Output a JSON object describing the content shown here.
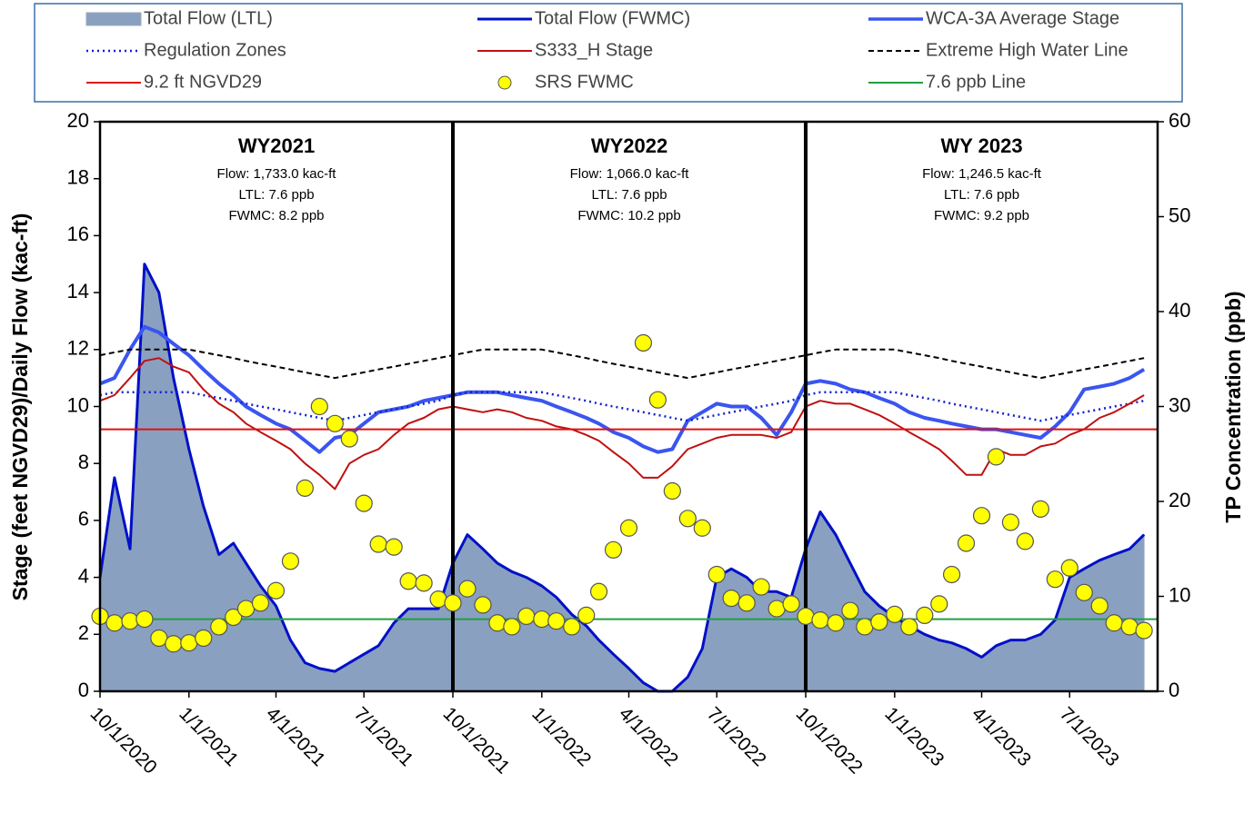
{
  "chart_data": {
    "type": "combo",
    "ylabel": "Stage (feet NGVD29)/Daily Flow (kac-ft)",
    "y2label": "TP Concentration (ppb)",
    "xlim": [
      "2020-10-01",
      "2023-09-30"
    ],
    "xticks": [
      {
        "value": "2020-10-01",
        "label": "10/1/2020"
      },
      {
        "value": "2021-01-01",
        "label": "1/1/2021"
      },
      {
        "value": "2021-04-01",
        "label": "4/1/2021"
      },
      {
        "value": "2021-07-01",
        "label": "7/1/2021"
      },
      {
        "value": "2021-10-01",
        "label": "10/1/2021"
      },
      {
        "value": "2022-01-01",
        "label": "1/1/2022"
      },
      {
        "value": "2022-04-01",
        "label": "4/1/2022"
      },
      {
        "value": "2022-07-01",
        "label": "7/1/2022"
      },
      {
        "value": "2022-10-01",
        "label": "10/1/2022"
      },
      {
        "value": "2023-01-01",
        "label": "1/1/2023"
      },
      {
        "value": "2023-04-01",
        "label": "4/1/2023"
      },
      {
        "value": "2023-07-01",
        "label": "7/1/2023"
      }
    ],
    "ylim": [
      0,
      20
    ],
    "yticks": [
      0,
      2,
      4,
      6,
      8,
      10,
      12,
      14,
      16,
      18,
      20
    ],
    "y2lim": [
      0,
      60
    ],
    "y2ticks": [
      0,
      10,
      20,
      30,
      40,
      50,
      60
    ],
    "annotations": [
      {
        "title": "WY2021",
        "lines": [
          "Flow: 1,733.0 kac-ft",
          "LTL: 7.6 ppb",
          "FWMC: 8.2 ppb"
        ]
      },
      {
        "title": "WY2022",
        "lines": [
          "Flow: 1,066.0 kac-ft",
          "LTL: 7.6 ppb",
          "FWMC: 10.2 ppb"
        ]
      },
      {
        "title": "WY 2023",
        "lines": [
          "Flow:  1,246.5 kac-ft",
          "LTL: 7.6 ppb",
          "FWMC: 9.2 ppb"
        ]
      }
    ],
    "x": [
      "2020-10-01",
      "2020-10-16",
      "2020-11-01",
      "2020-11-16",
      "2020-12-01",
      "2020-12-16",
      "2021-01-01",
      "2021-01-16",
      "2021-02-01",
      "2021-02-16",
      "2021-03-01",
      "2021-03-16",
      "2021-04-01",
      "2021-04-16",
      "2021-05-01",
      "2021-05-16",
      "2021-06-01",
      "2021-06-16",
      "2021-07-01",
      "2021-07-16",
      "2021-08-01",
      "2021-08-16",
      "2021-09-01",
      "2021-09-16",
      "2021-10-01",
      "2021-10-16",
      "2021-11-01",
      "2021-11-16",
      "2021-12-01",
      "2021-12-16",
      "2022-01-01",
      "2022-01-16",
      "2022-02-01",
      "2022-02-16",
      "2022-03-01",
      "2022-03-16",
      "2022-04-01",
      "2022-04-16",
      "2022-05-01",
      "2022-05-16",
      "2022-06-01",
      "2022-06-16",
      "2022-07-01",
      "2022-07-16",
      "2022-08-01",
      "2022-08-16",
      "2022-09-01",
      "2022-09-16",
      "2022-10-01",
      "2022-10-16",
      "2022-11-01",
      "2022-11-16",
      "2022-12-01",
      "2022-12-16",
      "2023-01-01",
      "2023-01-16",
      "2023-02-01",
      "2023-02-16",
      "2023-03-01",
      "2023-03-16",
      "2023-04-01",
      "2023-04-16",
      "2023-05-01",
      "2023-05-16",
      "2023-06-01",
      "2023-06-16",
      "2023-07-01",
      "2023-07-16",
      "2023-08-01",
      "2023-08-16",
      "2023-09-01",
      "2023-09-16"
    ],
    "series": [
      {
        "name": "Total Flow (LTL)",
        "type": "area",
        "color": "#8aa0c0",
        "values": [
          4.0,
          7.5,
          5.0,
          15.0,
          14.0,
          11.0,
          8.5,
          6.5,
          4.8,
          5.2,
          4.5,
          3.7,
          3.0,
          1.8,
          1.0,
          0.8,
          0.7,
          1.0,
          1.3,
          1.6,
          2.4,
          2.9,
          2.9,
          2.9,
          4.5,
          5.5,
          5.0,
          4.5,
          4.2,
          4.0,
          3.7,
          3.3,
          2.7,
          2.3,
          1.8,
          1.3,
          0.8,
          0.3,
          0.0,
          0.0,
          0.5,
          1.5,
          4.0,
          4.3,
          4.0,
          3.5,
          3.5,
          3.3,
          5.0,
          6.3,
          5.5,
          4.5,
          3.5,
          3.0,
          2.6,
          2.3,
          2.0,
          1.8,
          1.7,
          1.5,
          1.2,
          1.6,
          1.8,
          1.8,
          2.0,
          2.5,
          4.0,
          4.3,
          4.6,
          4.8,
          5.0,
          5.5
        ]
      },
      {
        "name": "Total Flow (FWMC)",
        "type": "line",
        "color": "#0010c8",
        "width": 3,
        "values": [
          4.0,
          7.5,
          5.0,
          15.0,
          14.0,
          11.0,
          8.5,
          6.5,
          4.8,
          5.2,
          4.5,
          3.7,
          3.0,
          1.8,
          1.0,
          0.8,
          0.7,
          1.0,
          1.3,
          1.6,
          2.4,
          2.9,
          2.9,
          2.9,
          4.5,
          5.5,
          5.0,
          4.5,
          4.2,
          4.0,
          3.7,
          3.3,
          2.7,
          2.3,
          1.8,
          1.3,
          0.8,
          0.3,
          0.0,
          0.0,
          0.5,
          1.5,
          4.0,
          4.3,
          4.0,
          3.5,
          3.5,
          3.3,
          5.0,
          6.3,
          5.5,
          4.5,
          3.5,
          3.0,
          2.6,
          2.3,
          2.0,
          1.8,
          1.7,
          1.5,
          1.2,
          1.6,
          1.8,
          1.8,
          2.0,
          2.5,
          4.0,
          4.3,
          4.6,
          4.8,
          5.0,
          5.5
        ]
      },
      {
        "name": "WCA-3A Average Stage",
        "type": "line",
        "color": "#3a55f0",
        "width": 4,
        "values": [
          10.8,
          11.0,
          12.0,
          12.8,
          12.6,
          12.2,
          11.8,
          11.3,
          10.8,
          10.4,
          10.0,
          9.7,
          9.4,
          9.2,
          8.8,
          8.4,
          8.9,
          9.0,
          9.4,
          9.8,
          9.9,
          10.0,
          10.2,
          10.3,
          10.4,
          10.5,
          10.5,
          10.5,
          10.4,
          10.3,
          10.2,
          10.0,
          9.8,
          9.6,
          9.4,
          9.1,
          8.9,
          8.6,
          8.4,
          8.5,
          9.5,
          9.8,
          10.1,
          10.0,
          10.0,
          9.6,
          9.0,
          9.8,
          10.8,
          10.9,
          10.8,
          10.6,
          10.5,
          10.3,
          10.1,
          9.8,
          9.6,
          9.5,
          9.4,
          9.3,
          9.2,
          9.2,
          9.1,
          9.0,
          8.9,
          9.3,
          9.8,
          10.6,
          10.7,
          10.8,
          11.0,
          11.3
        ]
      },
      {
        "name": "Regulation Zones",
        "type": "line",
        "color": "#1020d0",
        "width": 2.5,
        "dash": "2 4",
        "values": [
          10.4,
          10.5,
          10.5,
          10.5,
          10.5,
          10.5,
          10.5,
          10.4,
          10.3,
          10.2,
          10.1,
          10.0,
          9.9,
          9.8,
          9.7,
          9.6,
          9.5,
          9.6,
          9.7,
          9.8,
          9.9,
          10.0,
          10.1,
          10.2,
          10.4,
          10.5,
          10.5,
          10.5,
          10.5,
          10.5,
          10.5,
          10.4,
          10.3,
          10.2,
          10.1,
          10.0,
          9.9,
          9.8,
          9.7,
          9.6,
          9.5,
          9.6,
          9.7,
          9.8,
          9.9,
          10.0,
          10.1,
          10.2,
          10.4,
          10.5,
          10.5,
          10.5,
          10.5,
          10.5,
          10.5,
          10.4,
          10.3,
          10.2,
          10.1,
          10.0,
          9.9,
          9.8,
          9.7,
          9.6,
          9.5,
          9.6,
          9.7,
          9.8,
          9.9,
          10.0,
          10.1,
          10.2
        ]
      },
      {
        "name": "S333_H Stage",
        "type": "line",
        "color": "#c01010",
        "width": 2,
        "values": [
          10.2,
          10.4,
          11.0,
          11.6,
          11.7,
          11.4,
          11.2,
          10.6,
          10.1,
          9.8,
          9.4,
          9.1,
          8.8,
          8.5,
          8.0,
          7.6,
          7.1,
          8.0,
          8.3,
          8.5,
          9.0,
          9.4,
          9.6,
          9.9,
          10.0,
          9.9,
          9.8,
          9.9,
          9.8,
          9.6,
          9.5,
          9.3,
          9.2,
          9.0,
          8.8,
          8.4,
          8.0,
          7.5,
          7.5,
          7.9,
          8.5,
          8.7,
          8.9,
          9.0,
          9.0,
          9.0,
          8.9,
          9.1,
          10.0,
          10.2,
          10.1,
          10.1,
          9.9,
          9.7,
          9.4,
          9.1,
          8.8,
          8.5,
          8.1,
          7.6,
          7.6,
          8.5,
          8.3,
          8.3,
          8.6,
          8.7,
          9.0,
          9.2,
          9.6,
          9.8,
          10.1,
          10.4
        ]
      },
      {
        "name": "Extreme High Water Line",
        "type": "line",
        "color": "#000000",
        "width": 2,
        "dash": "6 4",
        "values": [
          11.8,
          11.9,
          12.0,
          12.0,
          12.0,
          12.0,
          12.0,
          11.9,
          11.8,
          11.7,
          11.6,
          11.5,
          11.4,
          11.3,
          11.2,
          11.1,
          11.0,
          11.1,
          11.2,
          11.3,
          11.4,
          11.5,
          11.6,
          11.7,
          11.8,
          11.9,
          12.0,
          12.0,
          12.0,
          12.0,
          12.0,
          11.9,
          11.8,
          11.7,
          11.6,
          11.5,
          11.4,
          11.3,
          11.2,
          11.1,
          11.0,
          11.1,
          11.2,
          11.3,
          11.4,
          11.5,
          11.6,
          11.7,
          11.8,
          11.9,
          12.0,
          12.0,
          12.0,
          12.0,
          12.0,
          11.9,
          11.8,
          11.7,
          11.6,
          11.5,
          11.4,
          11.3,
          11.2,
          11.1,
          11.0,
          11.1,
          11.2,
          11.3,
          11.4,
          11.5,
          11.6,
          11.7
        ]
      },
      {
        "name": "9.2 ft NGVD29",
        "type": "hline",
        "color": "#e01010",
        "width": 2,
        "value": 9.2
      },
      {
        "name": "SRS FWMC",
        "type": "scatter",
        "color": "#ffff00",
        "axis": "y2",
        "values": [
          7.9,
          7.2,
          7.4,
          7.6,
          5.6,
          5.0,
          5.1,
          5.6,
          6.8,
          7.8,
          8.7,
          9.3,
          10.6,
          13.7,
          21.4,
          30.0,
          28.2,
          26.6,
          19.8,
          15.5,
          15.2,
          11.6,
          11.4,
          9.7,
          9.3,
          10.8,
          9.1,
          7.2,
          6.8,
          7.9,
          7.6,
          7.4,
          6.8,
          8.0,
          10.5,
          14.9,
          17.2,
          36.7,
          30.7,
          21.1,
          18.2,
          17.2,
          12.3,
          9.8,
          9.3,
          11.0,
          8.7,
          9.2,
          7.9,
          7.5,
          7.2,
          8.5,
          6.8,
          7.3,
          8.1,
          6.8,
          8.0,
          9.2,
          12.3,
          15.6,
          18.5,
          24.7,
          17.8,
          15.8,
          19.2,
          11.8,
          13.0,
          10.4,
          9.0,
          7.2,
          6.8,
          6.4
        ]
      },
      {
        "name": "7.6 ppb Line",
        "type": "hline",
        "color": "#20a040",
        "width": 2,
        "axis": "y2",
        "value": 7.6
      }
    ]
  }
}
